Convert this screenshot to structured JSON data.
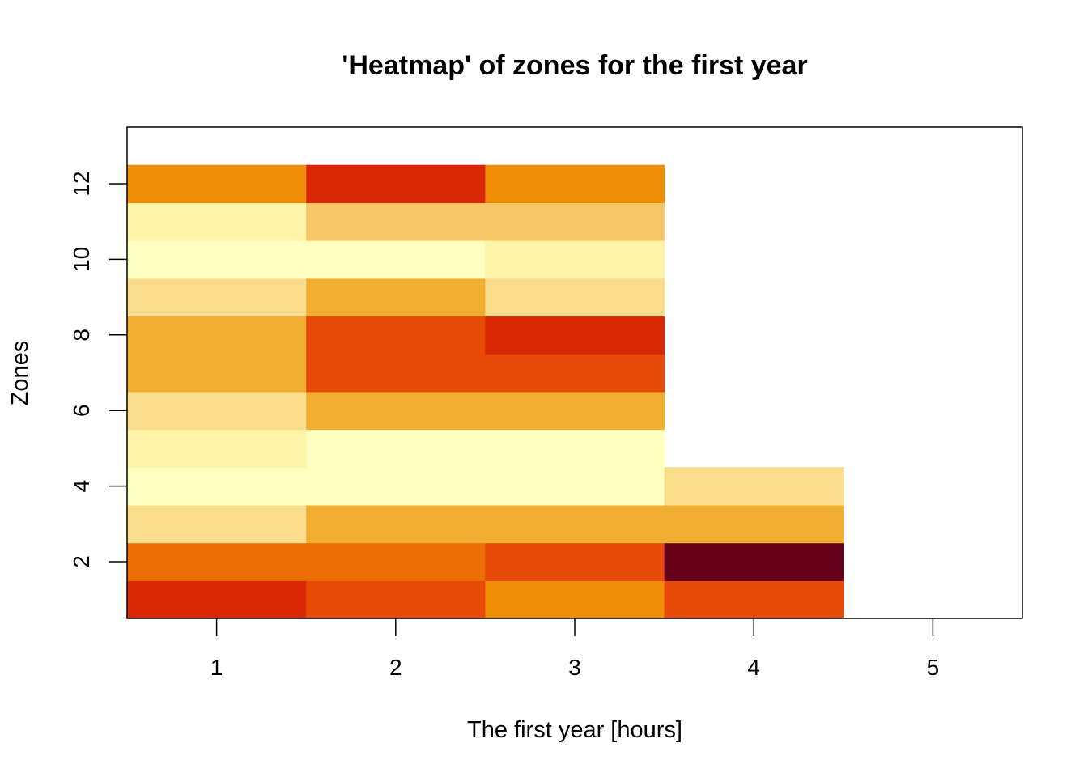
{
  "chart_data": {
    "type": "heatmap",
    "title": "'Heatmap' of zones for the first year",
    "xlabel": "The first year [hours]",
    "ylabel": "Zones",
    "x": [
      1,
      2,
      3,
      4,
      5
    ],
    "y": [
      1,
      2,
      3,
      4,
      5,
      6,
      7,
      8,
      9,
      10,
      11,
      12
    ],
    "xlim": [
      0.5,
      5.5
    ],
    "ylim": [
      0.5,
      13.5
    ],
    "x_ticks": [
      "1",
      "2",
      "3",
      "4",
      "5"
    ],
    "y_ticks": [
      "2",
      "4",
      "6",
      "8",
      "10",
      "12"
    ],
    "grid": false,
    "legend": "none",
    "palette": [
      "#FFFFBF",
      "#FFF3A8",
      "#F9DD8B",
      "#F6C766",
      "#F2AE30",
      "#F08D07",
      "#EC6F06",
      "#E74B07",
      "#D92804",
      "#670019"
    ],
    "values": [
      [
        8,
        7,
        5,
        7,
        null
      ],
      [
        6,
        6,
        7,
        9,
        null
      ],
      [
        2,
        4,
        4,
        4,
        null
      ],
      [
        0,
        0,
        0,
        2,
        null
      ],
      [
        1,
        0,
        0,
        null,
        null
      ],
      [
        2,
        4,
        4,
        null,
        null
      ],
      [
        4,
        7,
        7,
        null,
        null
      ],
      [
        4,
        7,
        8,
        null,
        null
      ],
      [
        2,
        4,
        2,
        null,
        null
      ],
      [
        0,
        0,
        1,
        null,
        null
      ],
      [
        1,
        3,
        3,
        null,
        null
      ],
      [
        5,
        8,
        5,
        null,
        null
      ]
    ]
  }
}
